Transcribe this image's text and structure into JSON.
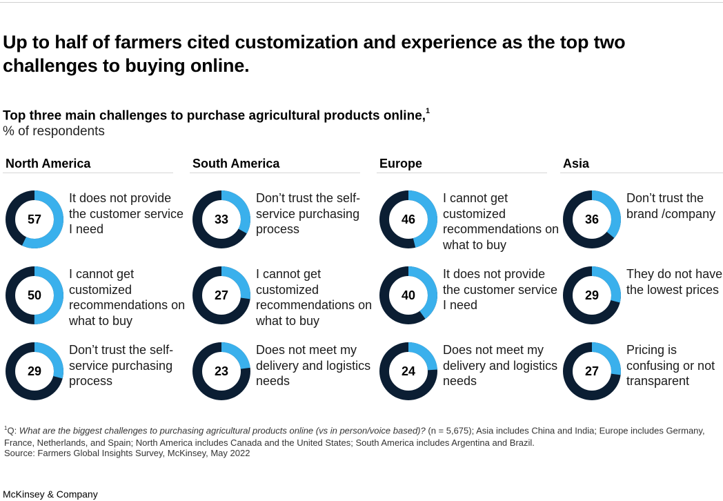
{
  "headline": "Up to half of farmers cited customization and experience as the top two challenges to buying online.",
  "subtitle": "Top three main challenges to purchase agricultural products online,",
  "subtitle_note": "1",
  "unit": "% of respondents",
  "colors": {
    "filled": "#3ab0ec",
    "remaining": "#0b1e33"
  },
  "chart_data": {
    "type": "donut-grid",
    "unit": "% of respondents",
    "regions": [
      {
        "name": "North America",
        "items": [
          {
            "value": 57,
            "label": "It does not provide the customer service I need"
          },
          {
            "value": 50,
            "label": "I cannot get customized recommendations on what to buy"
          },
          {
            "value": 29,
            "label": "Don’t trust the self-service purchasing process"
          }
        ]
      },
      {
        "name": "South America",
        "items": [
          {
            "value": 33,
            "label": "Don’t trust the self-service purchasing process"
          },
          {
            "value": 27,
            "label": "I cannot get customized recommendations on what to buy"
          },
          {
            "value": 23,
            "label": "Does not meet my delivery and logistics needs"
          }
        ]
      },
      {
        "name": "Europe",
        "items": [
          {
            "value": 46,
            "label": "I cannot get customized recommendations on what to buy"
          },
          {
            "value": 40,
            "label": "It does not provide the customer service I need"
          },
          {
            "value": 24,
            "label": "Does not meet my delivery and logistics needs"
          }
        ]
      },
      {
        "name": "Asia",
        "items": [
          {
            "value": 36,
            "label": "Don’t trust the brand /company"
          },
          {
            "value": 29,
            "label": "They do not have the lowest prices"
          },
          {
            "value": 27,
            "label": "Pricing is confusing or not transparent"
          }
        ]
      }
    ]
  },
  "footnote": {
    "marker": "1",
    "prefix": "Q: ",
    "question": "What are the biggest challenges to purchasing agricultural products online (vs in person/voice based)?",
    "rest": " (n = 5,675); Asia includes China and India; Europe includes Germany, France, Netherlands, and Spain; North America includes Canada and the United States; South America includes Argentina and Brazil."
  },
  "source": "Source: Farmers Global Insights Survey, McKinsey, May 2022",
  "brand": "McKinsey & Company"
}
